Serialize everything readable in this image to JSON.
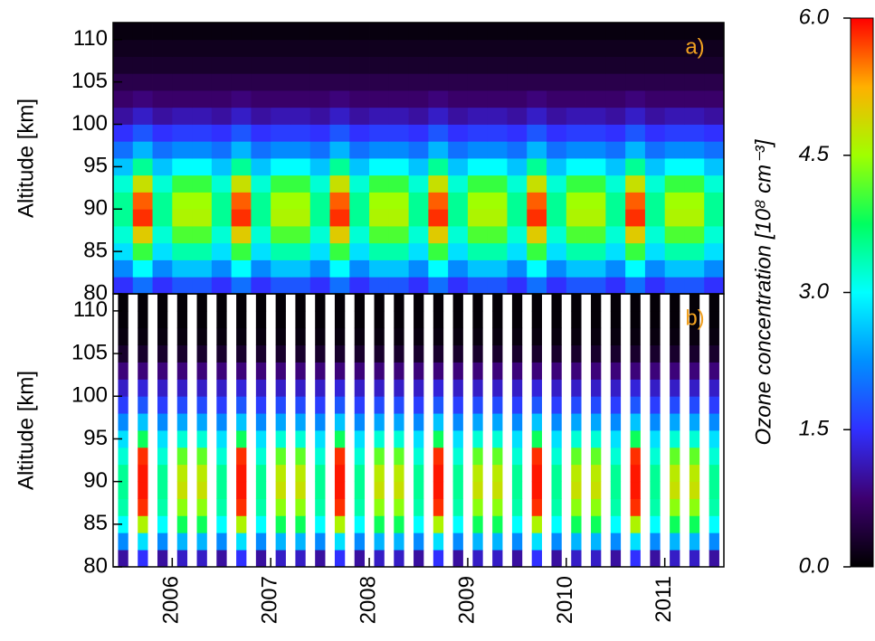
{
  "chart_data": [
    {
      "type": "heatmap",
      "panel_label": "a)",
      "ylabel": "Altitude [km]",
      "x": [
        2005.5,
        2005.7,
        2005.9,
        2006.1,
        2006.3,
        2006.5,
        2006.7,
        2006.9,
        2007.1,
        2007.3,
        2007.5,
        2007.7,
        2007.9,
        2008.1,
        2008.3,
        2008.5,
        2008.7,
        2008.9,
        2009.1,
        2009.3,
        2009.5,
        2009.7,
        2009.9,
        2010.1,
        2010.3,
        2010.5,
        2010.7,
        2010.9,
        2011.1,
        2011.3,
        2011.5
      ],
      "y": [
        81,
        83,
        85,
        87,
        89,
        91,
        93,
        95,
        97,
        99,
        101,
        103,
        105,
        107,
        109,
        111
      ],
      "z": [
        [
          1.5,
          2.0,
          1.5,
          1.8,
          1.8,
          1.5,
          2.0,
          1.5,
          1.8,
          1.8,
          1.5,
          2.0,
          1.5,
          1.8,
          1.8,
          1.5,
          2.0,
          1.5,
          1.8,
          1.8,
          1.5,
          2.0,
          1.5,
          1.8,
          1.8,
          1.5,
          2.0,
          1.5,
          1.8,
          1.8,
          1.5
        ],
        [
          2.2,
          3.0,
          2.2,
          2.6,
          2.6,
          2.2,
          3.0,
          2.2,
          2.6,
          2.6,
          2.2,
          3.0,
          2.2,
          2.6,
          2.6,
          2.2,
          3.0,
          2.2,
          2.6,
          2.6,
          2.2,
          3.0,
          2.2,
          2.6,
          2.6,
          2.2,
          3.0,
          2.2,
          2.6,
          2.6,
          2.2
        ],
        [
          2.8,
          4.0,
          2.8,
          3.4,
          3.4,
          2.8,
          4.0,
          2.8,
          3.4,
          3.4,
          2.8,
          4.0,
          2.8,
          3.4,
          3.4,
          2.8,
          4.0,
          2.8,
          3.4,
          3.4,
          2.8,
          4.0,
          2.8,
          3.4,
          3.4,
          2.8,
          4.0,
          2.8,
          3.4,
          3.4,
          2.8
        ],
        [
          3.2,
          5.0,
          3.2,
          4.1,
          4.1,
          3.2,
          5.0,
          3.2,
          4.1,
          4.1,
          3.2,
          5.0,
          3.2,
          4.1,
          4.1,
          3.2,
          5.0,
          3.2,
          4.1,
          4.1,
          3.2,
          5.0,
          3.2,
          4.1,
          4.1,
          3.2,
          5.0,
          3.2,
          4.1,
          4.1,
          3.2
        ],
        [
          3.5,
          5.8,
          3.5,
          4.6,
          4.6,
          3.5,
          5.8,
          3.5,
          4.6,
          4.6,
          3.5,
          5.8,
          3.5,
          4.6,
          4.6,
          3.5,
          5.8,
          3.5,
          4.6,
          4.6,
          3.5,
          5.8,
          3.5,
          4.6,
          4.6,
          3.5,
          5.8,
          3.5,
          4.6,
          4.6,
          3.5
        ],
        [
          3.5,
          5.6,
          3.5,
          4.5,
          4.5,
          3.5,
          5.6,
          3.5,
          4.5,
          4.5,
          3.5,
          5.6,
          3.5,
          4.5,
          4.5,
          3.5,
          5.6,
          3.5,
          4.5,
          4.5,
          3.5,
          5.6,
          3.5,
          4.5,
          4.5,
          3.5,
          5.6,
          3.5,
          4.5,
          4.5,
          3.5
        ],
        [
          3.2,
          4.8,
          3.2,
          4.0,
          4.0,
          3.2,
          4.8,
          3.2,
          4.0,
          4.0,
          3.2,
          4.8,
          3.2,
          4.0,
          4.0,
          3.2,
          4.8,
          3.2,
          4.0,
          4.0,
          3.2,
          4.8,
          3.2,
          4.0,
          4.0,
          3.2,
          4.8,
          3.2,
          4.0,
          4.0,
          3.2
        ],
        [
          2.6,
          3.5,
          2.6,
          3.0,
          3.0,
          2.6,
          3.5,
          2.6,
          3.0,
          3.0,
          2.6,
          3.5,
          2.6,
          3.0,
          3.0,
          2.6,
          3.5,
          2.6,
          3.0,
          3.0,
          2.6,
          3.5,
          2.6,
          3.0,
          3.0,
          2.6,
          3.5,
          2.6,
          3.0,
          3.0,
          2.6
        ],
        [
          2.0,
          2.5,
          2.0,
          2.2,
          2.2,
          2.0,
          2.5,
          2.0,
          2.2,
          2.2,
          2.0,
          2.5,
          2.0,
          2.2,
          2.2,
          2.0,
          2.5,
          2.0,
          2.2,
          2.2,
          2.0,
          2.5,
          2.0,
          2.2,
          2.2,
          2.0,
          2.5,
          2.0,
          2.2,
          2.2,
          2.0
        ],
        [
          1.5,
          1.8,
          1.5,
          1.6,
          1.6,
          1.5,
          1.8,
          1.5,
          1.6,
          1.6,
          1.5,
          1.8,
          1.5,
          1.6,
          1.6,
          1.5,
          1.8,
          1.5,
          1.6,
          1.6,
          1.5,
          1.8,
          1.5,
          1.6,
          1.6,
          1.5,
          1.8,
          1.5,
          1.6,
          1.6,
          1.5
        ],
        [
          1.0,
          1.2,
          1.0,
          1.1,
          1.1,
          1.0,
          1.2,
          1.0,
          1.1,
          1.1,
          1.0,
          1.2,
          1.0,
          1.1,
          1.1,
          1.0,
          1.2,
          1.0,
          1.1,
          1.1,
          1.0,
          1.2,
          1.0,
          1.1,
          1.1,
          1.0,
          1.2,
          1.0,
          1.1,
          1.1,
          1.0
        ],
        [
          0.7,
          0.8,
          0.7,
          0.7,
          0.7,
          0.7,
          0.8,
          0.7,
          0.7,
          0.7,
          0.7,
          0.8,
          0.7,
          0.7,
          0.7,
          0.7,
          0.8,
          0.7,
          0.7,
          0.7,
          0.7,
          0.8,
          0.7,
          0.7,
          0.7,
          0.7,
          0.8,
          0.7,
          0.7,
          0.7,
          0.7
        ],
        [
          0.5,
          0.5,
          0.5,
          0.5,
          0.5,
          0.5,
          0.5,
          0.5,
          0.5,
          0.5,
          0.5,
          0.5,
          0.5,
          0.5,
          0.5,
          0.5,
          0.5,
          0.5,
          0.5,
          0.5,
          0.5,
          0.5,
          0.5,
          0.5,
          0.5,
          0.5,
          0.5,
          0.5,
          0.5,
          0.5,
          0.5
        ],
        [
          0.3,
          0.3,
          0.3,
          0.3,
          0.3,
          0.3,
          0.3,
          0.3,
          0.3,
          0.3,
          0.3,
          0.3,
          0.3,
          0.3,
          0.3,
          0.3,
          0.3,
          0.3,
          0.3,
          0.3,
          0.3,
          0.3,
          0.3,
          0.3,
          0.3,
          0.3,
          0.3,
          0.3,
          0.3,
          0.3,
          0.3
        ],
        [
          0.2,
          0.2,
          0.2,
          0.2,
          0.2,
          0.2,
          0.2,
          0.2,
          0.2,
          0.2,
          0.2,
          0.2,
          0.2,
          0.2,
          0.2,
          0.2,
          0.2,
          0.2,
          0.2,
          0.2,
          0.2,
          0.2,
          0.2,
          0.2,
          0.2,
          0.2,
          0.2,
          0.2,
          0.2,
          0.2,
          0.2
        ],
        [
          0.1,
          0.1,
          0.1,
          0.1,
          0.1,
          0.1,
          0.1,
          0.1,
          0.1,
          0.1,
          0.1,
          0.1,
          0.1,
          0.1,
          0.1,
          0.1,
          0.1,
          0.1,
          0.1,
          0.1,
          0.1,
          0.1,
          0.1,
          0.1,
          0.1,
          0.1,
          0.1,
          0.1,
          0.1,
          0.1,
          0.1
        ]
      ],
      "xlim": [
        2005.4,
        2011.6
      ],
      "ylim": [
        80,
        112
      ],
      "yticks": [
        80,
        85,
        90,
        95,
        100,
        105,
        110
      ]
    },
    {
      "type": "heatmap",
      "panel_label": "b)",
      "ylabel": "Altitude [km]",
      "column_gaps": true,
      "x": [
        2005.5,
        2005.7,
        2005.9,
        2006.1,
        2006.3,
        2006.5,
        2006.7,
        2006.9,
        2007.1,
        2007.3,
        2007.5,
        2007.7,
        2007.9,
        2008.1,
        2008.3,
        2008.5,
        2008.7,
        2008.9,
        2009.1,
        2009.3,
        2009.5,
        2009.7,
        2009.9,
        2010.1,
        2010.3,
        2010.5,
        2010.7,
        2010.9,
        2011.1,
        2011.3,
        2011.5
      ],
      "y": [
        81,
        83,
        85,
        87,
        89,
        91,
        93,
        95,
        97,
        99,
        101,
        103,
        105,
        107,
        109,
        111
      ],
      "z": [
        [
          1.0,
          1.5,
          1.0,
          1.2,
          1.2,
          1.0,
          1.5,
          1.0,
          1.2,
          1.2,
          1.0,
          1.5,
          1.0,
          1.2,
          1.2,
          1.0,
          1.5,
          1.0,
          1.2,
          1.2,
          1.0,
          1.5,
          1.0,
          1.2,
          1.2,
          1.0,
          1.5,
          1.0,
          1.2,
          1.2,
          1.0
        ],
        [
          2.2,
          2.8,
          2.2,
          2.5,
          2.5,
          2.2,
          2.8,
          2.2,
          2.5,
          2.5,
          2.2,
          2.8,
          2.2,
          2.5,
          2.5,
          2.2,
          2.8,
          2.2,
          2.5,
          2.5,
          2.2,
          2.8,
          2.2,
          2.5,
          2.5,
          2.2,
          2.8,
          2.2,
          2.5,
          2.5,
          2.2
        ],
        [
          3.0,
          4.6,
          3.0,
          3.8,
          3.8,
          3.0,
          4.6,
          3.0,
          3.8,
          3.8,
          3.0,
          4.6,
          3.0,
          3.8,
          3.8,
          3.0,
          4.6,
          3.0,
          3.8,
          3.8,
          3.0,
          4.6,
          3.0,
          3.8,
          3.8,
          3.0,
          4.6,
          3.0,
          3.8,
          3.8,
          3.0
        ],
        [
          3.4,
          5.8,
          3.4,
          4.4,
          4.4,
          3.4,
          5.8,
          3.4,
          4.4,
          4.4,
          3.4,
          5.8,
          3.4,
          4.4,
          4.4,
          3.4,
          5.8,
          3.4,
          4.4,
          4.4,
          3.4,
          5.8,
          3.4,
          4.4,
          4.4,
          3.4,
          5.8,
          3.4,
          4.4,
          4.4,
          3.4
        ],
        [
          3.5,
          5.9,
          3.5,
          4.8,
          4.8,
          3.5,
          5.9,
          3.5,
          4.8,
          4.8,
          3.5,
          5.9,
          3.5,
          4.8,
          4.8,
          3.5,
          5.9,
          3.5,
          4.8,
          4.8,
          3.5,
          5.9,
          3.5,
          4.8,
          4.8,
          3.5,
          5.9,
          3.5,
          4.8,
          4.8,
          3.5
        ],
        [
          3.5,
          5.9,
          3.5,
          4.7,
          4.7,
          3.5,
          5.9,
          3.5,
          4.7,
          4.7,
          3.5,
          5.9,
          3.5,
          4.7,
          4.7,
          3.5,
          5.9,
          3.5,
          4.7,
          4.7,
          3.5,
          5.9,
          3.5,
          4.7,
          4.7,
          3.5,
          5.9,
          3.5,
          4.7,
          4.7,
          3.5
        ],
        [
          3.2,
          5.8,
          3.2,
          4.2,
          4.2,
          3.2,
          5.8,
          3.2,
          4.2,
          4.2,
          3.2,
          5.8,
          3.2,
          4.2,
          4.2,
          3.2,
          5.8,
          3.2,
          4.2,
          4.2,
          3.2,
          5.8,
          3.2,
          4.2,
          4.2,
          3.2,
          5.8,
          3.2,
          4.2,
          4.2,
          3.2
        ],
        [
          2.8,
          3.8,
          2.8,
          3.2,
          3.2,
          2.8,
          3.8,
          2.8,
          3.2,
          3.2,
          2.8,
          3.8,
          2.8,
          3.2,
          3.2,
          2.8,
          3.8,
          2.8,
          3.2,
          3.2,
          2.8,
          3.8,
          2.8,
          3.2,
          3.2,
          2.8,
          3.8,
          2.8,
          3.2,
          3.2,
          2.8
        ],
        [
          2.2,
          2.6,
          2.2,
          2.4,
          2.4,
          2.2,
          2.6,
          2.2,
          2.4,
          2.4,
          2.2,
          2.6,
          2.2,
          2.4,
          2.4,
          2.2,
          2.6,
          2.2,
          2.4,
          2.4,
          2.2,
          2.6,
          2.2,
          2.4,
          2.4,
          2.2,
          2.6,
          2.2,
          2.4,
          2.4,
          2.2
        ],
        [
          1.6,
          1.8,
          1.6,
          1.7,
          1.7,
          1.6,
          1.8,
          1.6,
          1.7,
          1.7,
          1.6,
          1.8,
          1.6,
          1.7,
          1.7,
          1.6,
          1.8,
          1.6,
          1.7,
          1.7,
          1.6,
          1.8,
          1.6,
          1.7,
          1.7,
          1.6,
          1.8,
          1.6,
          1.7,
          1.7,
          1.6
        ],
        [
          1.2,
          1.3,
          1.2,
          1.2,
          1.2,
          1.2,
          1.3,
          1.2,
          1.2,
          1.2,
          1.2,
          1.3,
          1.2,
          1.2,
          1.2,
          1.2,
          1.3,
          1.2,
          1.2,
          1.2,
          1.2,
          1.3,
          1.2,
          1.2,
          1.2,
          1.2,
          1.3,
          1.2,
          1.2,
          1.2,
          1.2
        ],
        [
          0.8,
          0.8,
          0.8,
          0.8,
          0.8,
          0.8,
          0.8,
          0.8,
          0.8,
          0.8,
          0.8,
          0.8,
          0.8,
          0.8,
          0.8,
          0.8,
          0.8,
          0.8,
          0.8,
          0.8,
          0.8,
          0.8,
          0.8,
          0.8,
          0.8,
          0.8,
          0.8,
          0.8,
          0.8,
          0.8,
          0.8
        ],
        [
          0.3,
          0.3,
          0.3,
          0.3,
          0.3,
          0.3,
          0.3,
          0.3,
          0.3,
          0.3,
          0.3,
          0.3,
          0.3,
          0.3,
          0.3,
          0.3,
          0.3,
          0.3,
          0.3,
          0.3,
          0.3,
          0.3,
          0.3,
          0.3,
          0.3,
          0.3,
          0.3,
          0.3,
          0.3,
          0.3,
          0.3
        ],
        [
          0.1,
          0.1,
          0.1,
          0.1,
          0.1,
          0.1,
          0.1,
          0.1,
          0.1,
          0.1,
          0.1,
          0.1,
          0.1,
          0.1,
          0.1,
          0.1,
          0.1,
          0.1,
          0.1,
          0.1,
          0.1,
          0.1,
          0.1,
          0.1,
          0.1,
          0.1,
          0.1,
          0.1,
          0.1,
          0.1,
          0.1
        ],
        [
          0.05,
          0.05,
          0.05,
          0.05,
          0.05,
          0.05,
          0.05,
          0.05,
          0.05,
          0.05,
          0.05,
          0.05,
          0.05,
          0.05,
          0.05,
          0.05,
          0.05,
          0.05,
          0.05,
          0.05,
          0.05,
          0.05,
          0.05,
          0.05,
          0.05,
          0.05,
          0.05,
          0.05,
          0.05,
          0.05,
          0.05
        ],
        [
          0.05,
          0.05,
          0.05,
          0.05,
          0.05,
          0.05,
          0.05,
          0.05,
          0.05,
          0.05,
          0.05,
          0.05,
          0.05,
          0.05,
          0.05,
          0.05,
          0.05,
          0.05,
          0.05,
          0.05,
          0.05,
          0.05,
          0.05,
          0.05,
          0.05,
          0.05,
          0.05,
          0.05,
          0.05,
          0.05,
          0.05
        ]
      ],
      "xlim": [
        2005.4,
        2011.6
      ],
      "ylim": [
        80,
        112
      ],
      "yticks": [
        80,
        85,
        90,
        95,
        100,
        105,
        110
      ],
      "xticks": [
        2006,
        2007,
        2008,
        2009,
        2010,
        2011
      ]
    }
  ],
  "colorbar": {
    "label": "Ozone concentration [10⁸ cm⁻³]",
    "clim": [
      0,
      6
    ],
    "ticks": [
      {
        "value": 0,
        "label": "0.0"
      },
      {
        "value": 1.5,
        "label": "1.5"
      },
      {
        "value": 3,
        "label": "3.0"
      },
      {
        "value": 4.5,
        "label": "4.5"
      },
      {
        "value": 6,
        "label": "6.0"
      }
    ],
    "colormap": [
      "#000000",
      "#3d0070",
      "#3030ff",
      "#0090ff",
      "#00ffff",
      "#00ff60",
      "#a0ff00",
      "#ffb000",
      "#ff0000"
    ]
  }
}
